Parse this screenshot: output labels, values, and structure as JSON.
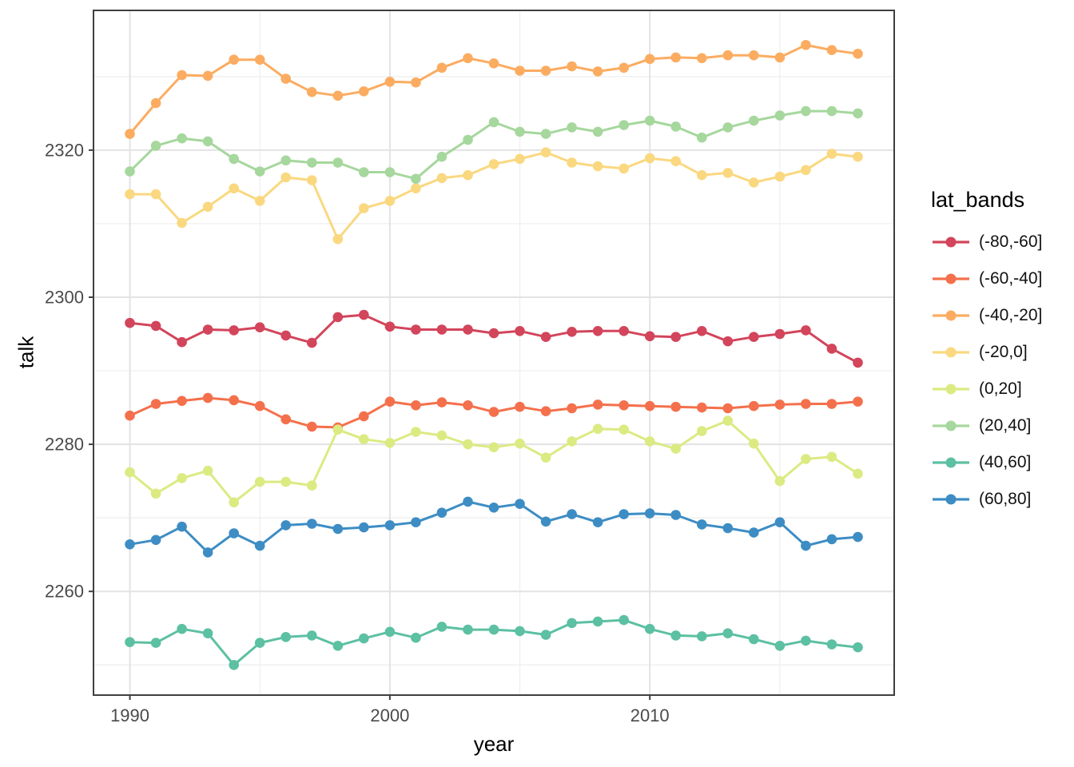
{
  "chart_data": {
    "type": "line",
    "title": "",
    "xlabel": "year",
    "ylabel": "talk",
    "legend_title": "lat_bands",
    "legend_position": "right",
    "grid": true,
    "x": [
      1990,
      1991,
      1992,
      1993,
      1994,
      1995,
      1996,
      1997,
      1998,
      1999,
      2000,
      2001,
      2002,
      2003,
      2004,
      2005,
      2006,
      2007,
      2008,
      2009,
      2010,
      2011,
      2012,
      2013,
      2014,
      2015,
      2016,
      2017,
      2018
    ],
    "x_ticks": [
      1990,
      2000,
      2010
    ],
    "x_minor_ticks": [
      1995,
      2005,
      2015
    ],
    "y_ticks": [
      2260,
      2280,
      2300,
      2320
    ],
    "y_minor_ticks": [
      2250,
      2270,
      2290,
      2310,
      2330
    ],
    "xlim": [
      1988.6,
      2019.4
    ],
    "ylim": [
      2245.9,
      2339.0
    ],
    "series": [
      {
        "name": "(-80,-60]",
        "color": "#d2455b",
        "values": [
          2296.5,
          2296.1,
          2293.9,
          2295.6,
          2295.5,
          2295.9,
          2294.8,
          2293.8,
          2297.3,
          2297.6,
          2296.0,
          2295.6,
          2295.6,
          2295.6,
          2295.1,
          2295.4,
          2294.6,
          2295.3,
          2295.4,
          2295.4,
          2294.7,
          2294.6,
          2295.4,
          2294.0,
          2294.6,
          2295.0,
          2295.5,
          2293.0,
          2291.1
        ]
      },
      {
        "name": "(-60,-40]",
        "color": "#f4704c",
        "values": [
          2283.9,
          2285.5,
          2285.9,
          2286.3,
          2286.0,
          2285.2,
          2283.4,
          2282.4,
          2282.3,
          2283.8,
          2285.8,
          2285.3,
          2285.7,
          2285.3,
          2284.4,
          2285.1,
          2284.5,
          2284.9,
          2285.4,
          2285.3,
          2285.2,
          2285.1,
          2285.0,
          2284.9,
          2285.2,
          2285.4,
          2285.5,
          2285.5,
          2285.8
        ]
      },
      {
        "name": "(-40,-20]",
        "color": "#fbac61",
        "values": [
          2322.2,
          2326.4,
          2330.2,
          2330.1,
          2332.3,
          2332.3,
          2329.7,
          2327.9,
          2327.4,
          2328.0,
          2329.3,
          2329.2,
          2331.2,
          2332.5,
          2331.8,
          2330.8,
          2330.8,
          2331.4,
          2330.7,
          2331.2,
          2332.4,
          2332.6,
          2332.5,
          2332.9,
          2332.9,
          2332.6,
          2334.3,
          2333.6,
          2333.1
        ]
      },
      {
        "name": "(-20,0]",
        "color": "#fad880",
        "values": [
          2314.0,
          2314.0,
          2310.1,
          2312.3,
          2314.8,
          2313.1,
          2316.3,
          2315.9,
          2307.9,
          2312.1,
          2313.1,
          2314.8,
          2316.2,
          2316.6,
          2318.1,
          2318.8,
          2319.7,
          2318.3,
          2317.8,
          2317.5,
          2318.9,
          2318.5,
          2316.6,
          2316.9,
          2315.6,
          2316.4,
          2317.3,
          2319.5,
          2319.1
        ]
      },
      {
        "name": "(0,20]",
        "color": "#dcea82",
        "values": [
          2276.2,
          2273.3,
          2275.4,
          2276.4,
          2272.1,
          2274.9,
          2274.9,
          2274.4,
          2282.0,
          2280.7,
          2280.2,
          2281.7,
          2281.2,
          2280.0,
          2279.6,
          2280.1,
          2278.2,
          2280.4,
          2282.1,
          2282.0,
          2280.4,
          2279.4,
          2281.8,
          2283.2,
          2280.1,
          2275.0,
          2278.0,
          2278.3,
          2276.0
        ]
      },
      {
        "name": "(20,40]",
        "color": "#a6d79d",
        "values": [
          2317.1,
          2320.6,
          2321.6,
          2321.2,
          2318.8,
          2317.1,
          2318.6,
          2318.3,
          2318.3,
          2317.0,
          2317.0,
          2316.1,
          2319.1,
          2321.4,
          2323.8,
          2322.5,
          2322.2,
          2323.1,
          2322.5,
          2323.4,
          2324.0,
          2323.2,
          2321.7,
          2323.1,
          2324.0,
          2324.7,
          2325.3,
          2325.3,
          2325.0
        ]
      },
      {
        "name": "(40,60]",
        "color": "#5cc0a2",
        "values": [
          2253.1,
          2253.0,
          2254.9,
          2254.3,
          2250.0,
          2253.0,
          2253.8,
          2254.0,
          2252.6,
          2253.6,
          2254.5,
          2253.7,
          2255.2,
          2254.8,
          2254.8,
          2254.6,
          2254.1,
          2255.7,
          2255.9,
          2256.1,
          2254.9,
          2254.0,
          2253.9,
          2254.3,
          2253.5,
          2252.6,
          2253.3,
          2252.8,
          2252.4
        ]
      },
      {
        "name": "(60,80]",
        "color": "#3d8dc4",
        "values": [
          2266.4,
          2267.0,
          2268.8,
          2265.3,
          2267.9,
          2266.2,
          2269.0,
          2269.2,
          2268.5,
          2268.7,
          2269.0,
          2269.4,
          2270.7,
          2272.2,
          2271.4,
          2271.9,
          2269.5,
          2270.5,
          2269.4,
          2270.5,
          2270.6,
          2270.4,
          2269.1,
          2268.6,
          2268.0,
          2269.4,
          2266.2,
          2267.1,
          2267.4
        ]
      }
    ]
  },
  "style": {
    "panel_border_color": "#3f3f3f",
    "major_grid_color": "#e3e3e3",
    "minor_grid_color": "#eeeeee",
    "tick_color": "#3f3f3f",
    "tick_label_color": "#4a4a4a",
    "background": "#ffffff"
  }
}
